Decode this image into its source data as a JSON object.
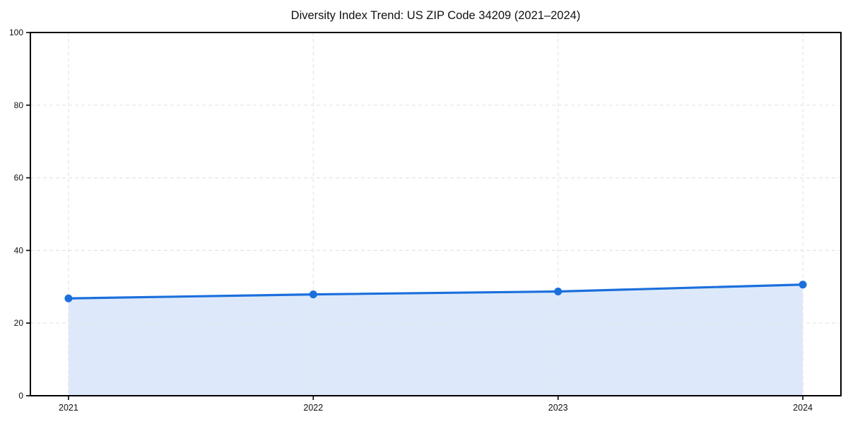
{
  "chart_data": {
    "type": "area",
    "title": "Diversity Index Trend: US ZIP Code 34209 (2021–2024)",
    "categories": [
      "2021",
      "2022",
      "2023",
      "2024"
    ],
    "values": [
      26.8,
      27.9,
      28.7,
      30.6
    ],
    "xlabel": "",
    "ylabel": "",
    "ylim": [
      0,
      100
    ],
    "yticks": [
      0,
      20,
      40,
      60,
      80,
      100
    ],
    "grid": true,
    "grid_linestyle": "dashed",
    "legend_position": "none",
    "marker": "circle",
    "colors": {
      "line": "#1b6fdc",
      "marker": "#1b6fdc",
      "fill": "#dde9fa",
      "grid": "#e5e5e5",
      "spine": "#000000",
      "text": "#111111",
      "background": "#ffffff"
    }
  }
}
